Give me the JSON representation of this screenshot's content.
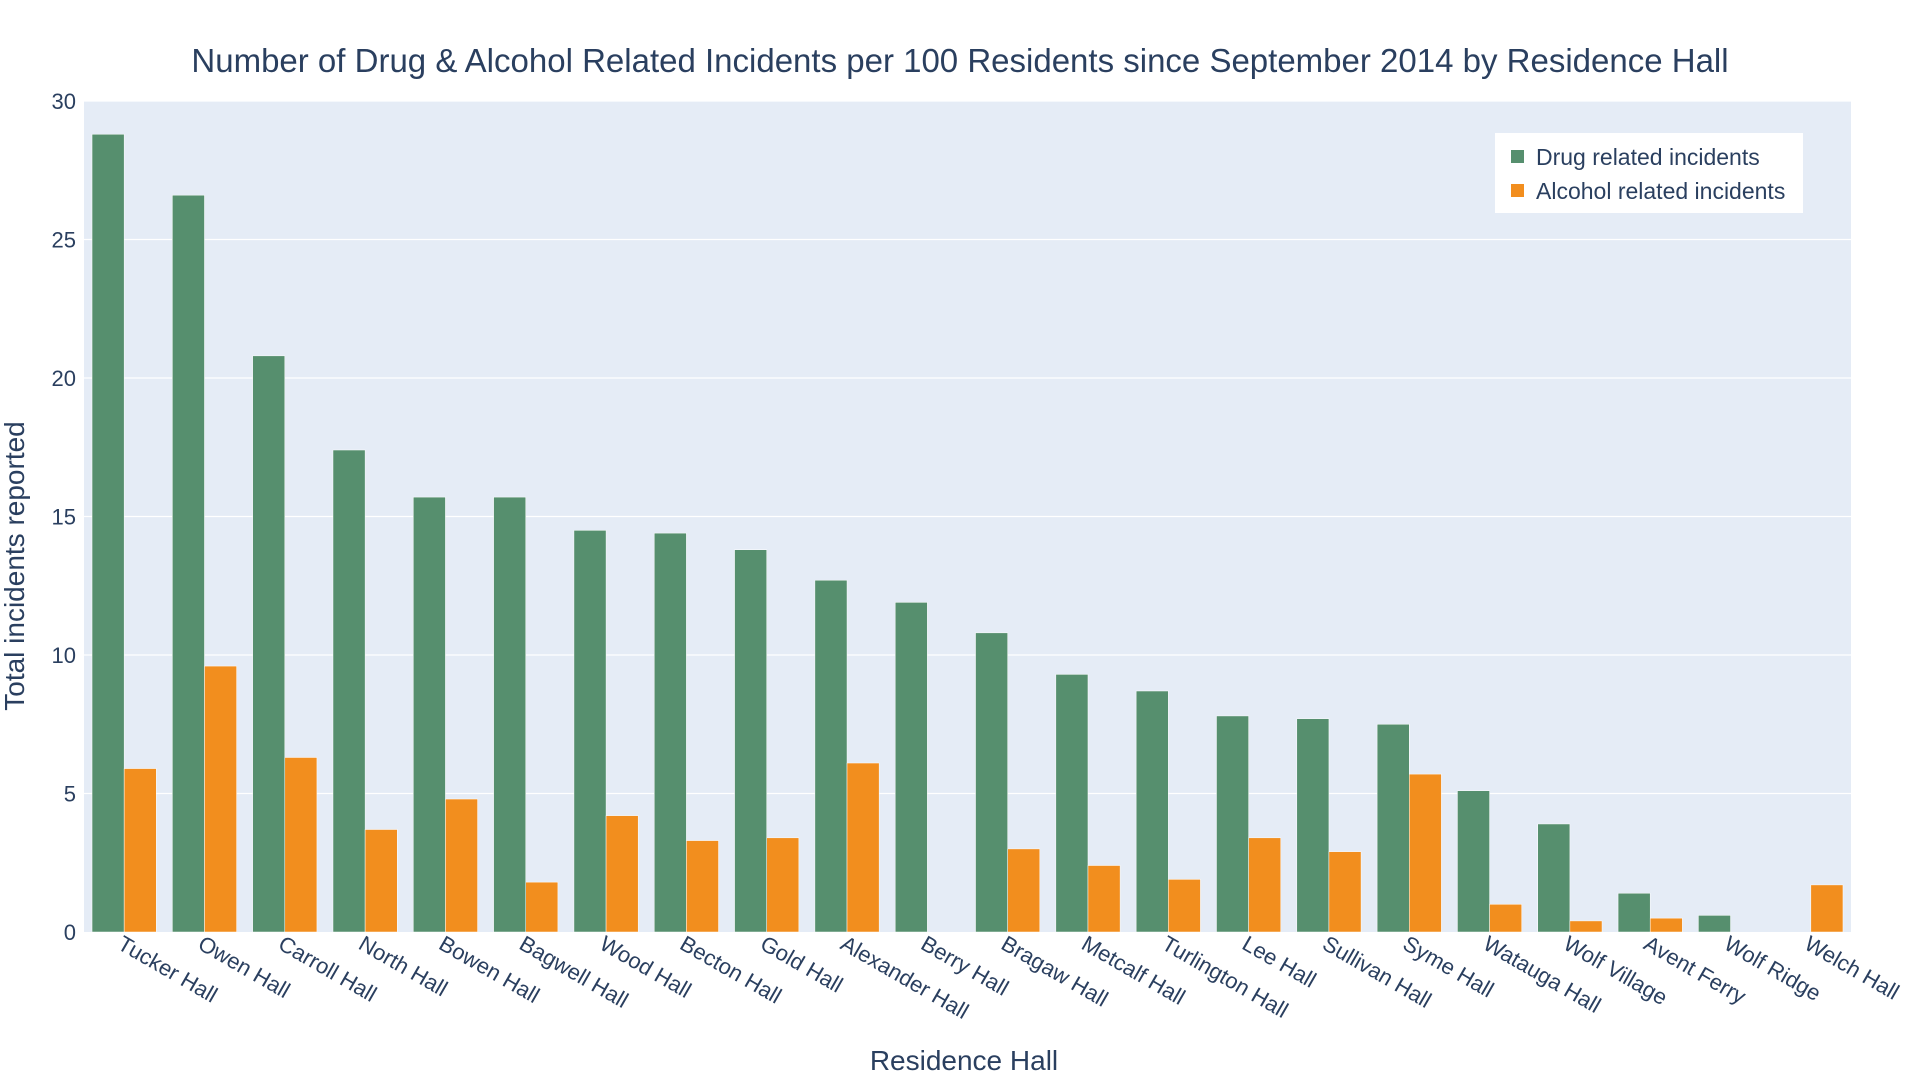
{
  "chart_data": {
    "type": "bar",
    "title": "Number of Drug & Alcohol Related Incidents per 100 Residents since September 2014 by Residence Hall",
    "xlabel": "Residence Hall",
    "ylabel": "Total incidents reported",
    "ylim": [
      0,
      30
    ],
    "yticks": [
      0,
      5,
      10,
      15,
      20,
      25,
      30
    ],
    "grid": true,
    "legend_position": "top-right",
    "categories": [
      "Tucker Hall",
      "Owen Hall",
      "Carroll Hall",
      "North Hall",
      "Bowen Hall",
      "Bagwell Hall",
      "Wood Hall",
      "Becton Hall",
      "Gold Hall",
      "Alexander Hall",
      "Berry Hall",
      "Bragaw Hall",
      "Metcalf Hall",
      "Turlington Hall",
      "Lee Hall",
      "Sullivan Hall",
      "Syme Hall",
      "Watauga Hall",
      "Wolf Village",
      "Avent Ferry",
      "Wolf Ridge",
      "Welch Hall"
    ],
    "series": [
      {
        "name": "Drug related incidents",
        "color": "#568f6e",
        "values": [
          28.8,
          26.6,
          20.8,
          17.4,
          15.7,
          15.7,
          14.5,
          14.4,
          13.8,
          12.7,
          11.9,
          10.8,
          9.3,
          8.7,
          7.8,
          7.7,
          7.5,
          5.1,
          3.9,
          1.4,
          0.6,
          0
        ]
      },
      {
        "name": "Alcohol related incidents",
        "color": "#f28e1e",
        "values": [
          5.9,
          9.6,
          6.3,
          3.7,
          4.8,
          1.8,
          4.2,
          3.3,
          3.4,
          6.1,
          0,
          3.0,
          2.4,
          1.9,
          3.4,
          2.9,
          5.7,
          1.0,
          0.4,
          0.5,
          0,
          1.7
        ]
      }
    ]
  },
  "colors": {
    "plot_background": "#e5ecf6",
    "grid": "#ffffff",
    "text": "#2a3f5f"
  }
}
